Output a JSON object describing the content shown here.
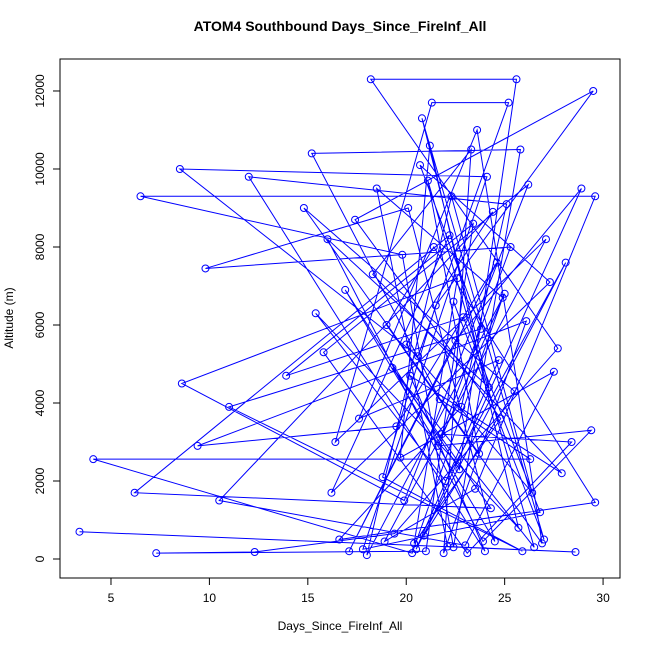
{
  "chart_data": {
    "type": "scatter",
    "connect_points": true,
    "title": "ATOM4 Southbound Days_Since_FireInf_All",
    "x_label": "Days_Since_FireInf_All",
    "y_label": "Altitude (m)",
    "xlim": [
      2.41,
      30.86
    ],
    "ylim": [
      -487,
      12820
    ],
    "xticks": [
      5,
      10,
      15,
      20,
      25,
      30
    ],
    "yticks": [
      0,
      2000,
      4000,
      6000,
      8000,
      10000,
      12000
    ],
    "series": [
      {
        "color": "#0000ff",
        "x": [
          3.4,
          28.6,
          22.1,
          18.5,
          24.9,
          20.3,
          4.1,
          26.3,
          21.7,
          15.2,
          25.8,
          22.4,
          19.8,
          6.5,
          29.6,
          23.5,
          18.9,
          27.1,
          16.4,
          21.3,
          25.2,
          20.6,
          8.5,
          24.1,
          17.8,
          26.8,
          22.9,
          13.9,
          23.4,
          21.0,
          7.3,
          12.3,
          19.4,
          27.7,
          18.2,
          25.6,
          22.7,
          16.9,
          24.5,
          20.1,
          9.8,
          25.3,
          21.8,
          28.4,
          23.1,
          15.8,
          26.2,
          19.9,
          8.6,
          22.6,
          20.4,
          24.8,
          17.4,
          29.5,
          21.5,
          18.8,
          25.9,
          11.0,
          23.8,
          20.7,
          27.3,
          16.2,
          22.2,
          6.2,
          24.3,
          19.3,
          26.5,
          21.1,
          23.7,
          14.8,
          25.5,
          20.9,
          28.9,
          22.5,
          17.1,
          24.6,
          19.5,
          9.4,
          26.1,
          21.9,
          23.3,
          18.3,
          27.9,
          20.2,
          24.0,
          12.0,
          25.1,
          22.8,
          16.6,
          29.6,
          21.4,
          19.0,
          26.9,
          23.6,
          17.6,
          24.7,
          20.5,
          28.1,
          22.0,
          15.4,
          25.7,
          21.2,
          19.7,
          27.5,
          23.0,
          10.5,
          24.4,
          20.0,
          26.4,
          22.3,
          18.0,
          25.0,
          21.6,
          29.4,
          23.9,
          16.0,
          24.2,
          20.8,
          27.0,
          22.4
        ],
        "y": [
          700,
          180,
          320,
          9500,
          6700,
          150,
          2560,
          2560,
          4100,
          10400,
          10500,
          300,
          7800,
          9300,
          9300,
          1800,
          450,
          8200,
          3000,
          11700,
          11700,
          5200,
          10000,
          9800,
          250,
          1200,
          6200,
          4700,
          8600,
          200,
          150,
          180,
          650,
          5400,
          12300,
          12300,
          2300,
          6900,
          450,
          9000,
          7450,
          8000,
          3200,
          3000,
          150,
          5300,
          9600,
          1500,
          4500,
          7200,
          400,
          3600,
          8700,
          12000,
          6500,
          2100,
          200,
          3900,
          5900,
          10100,
          7100,
          1700,
          8300,
          1700,
          1300,
          4900,
          300,
          9700,
          2700,
          9000,
          4300,
          600,
          9500,
          5600,
          200,
          7600,
          3400,
          2900,
          6100,
          150,
          10500,
          7300,
          2200,
          4700,
          200,
          9800,
          9100,
          3900,
          500,
          1450,
          8000,
          6000,
          400,
          11000,
          3600,
          5100,
          250,
          7600,
          2000,
          6300,
          800,
          10600,
          2600,
          4800,
          350,
          1500,
          8900,
          5500,
          1700,
          9300,
          100,
          6800,
          2900,
          3300,
          450,
          8200,
          4400,
          11300,
          500,
          6600
        ]
      }
    ]
  }
}
